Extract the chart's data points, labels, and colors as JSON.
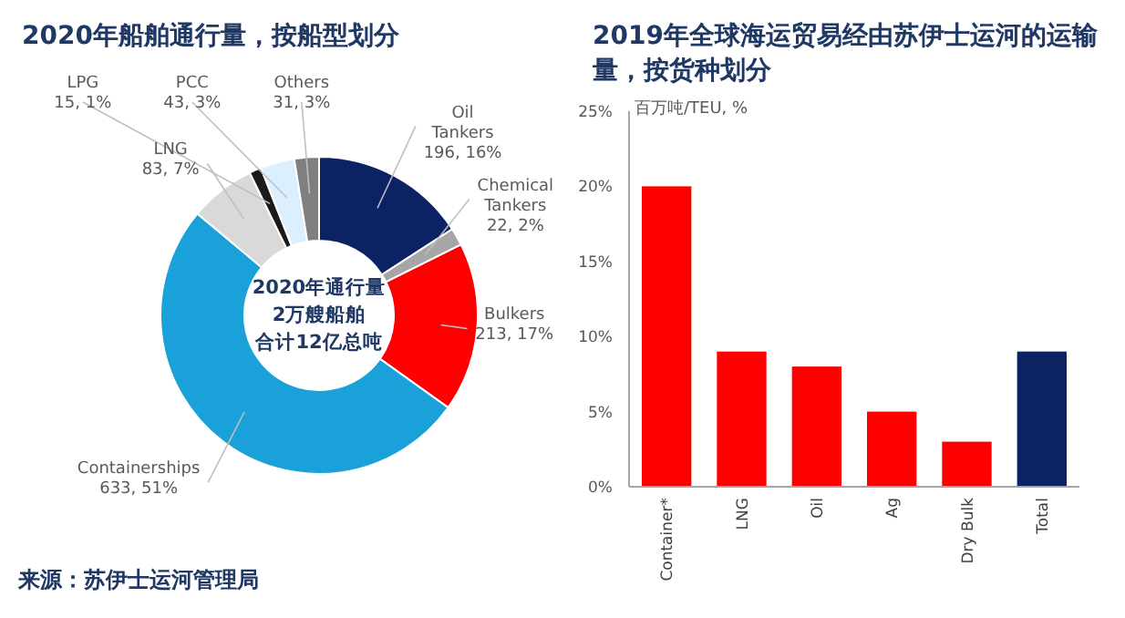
{
  "chart_data": [
    {
      "type": "donut",
      "title": "2020年船舶通行量，按船型划分",
      "categories": [
        "Oil Tankers",
        "Chemical Tankers",
        "Bulkers",
        "Containerships",
        "LNG",
        "LPG",
        "PCC",
        "Others"
      ],
      "values": [
        196,
        22,
        213,
        633,
        83,
        15,
        43,
        31
      ],
      "value_labels": [
        "196, 16%",
        "22, 2%",
        "213, 17%",
        "633, 51%",
        "83, 7%",
        "15, 1%",
        "43, 3%",
        "31, 3%"
      ],
      "colors": [
        "#0b2263",
        "#a6a6a6",
        "#ff0000",
        "#1ba1d9",
        "#d9d9d9",
        "#1a1a1a",
        "#dcefff",
        "#7f7f7f"
      ],
      "annotations": [
        "2020年通行量",
        "2万艘船舶",
        "合计12亿总吨",
        "来源：苏伊士运河管理局"
      ]
    },
    {
      "type": "bar",
      "title": "2019年全球海运贸易经由苏伊士运河的运输量，按货种划分",
      "ylabel": "百万吨/TEU, %",
      "categories": [
        "Container*",
        "LNG",
        "Oil",
        "Ag",
        "Dry Bulk",
        "Total"
      ],
      "values": [
        20,
        9,
        8,
        5,
        3,
        9
      ],
      "colors": [
        "#ff0000",
        "#ff0000",
        "#ff0000",
        "#ff0000",
        "#ff0000",
        "#0b2263"
      ],
      "ylim": [
        0,
        25
      ],
      "yticks": [
        {
          "value": 0,
          "label": "0%"
        },
        {
          "value": 5,
          "label": "5%"
        },
        {
          "value": 10,
          "label": "10%"
        },
        {
          "value": 15,
          "label": "15%"
        },
        {
          "value": 20,
          "label": "20%"
        },
        {
          "value": 25,
          "label": "25%"
        }
      ]
    }
  ]
}
